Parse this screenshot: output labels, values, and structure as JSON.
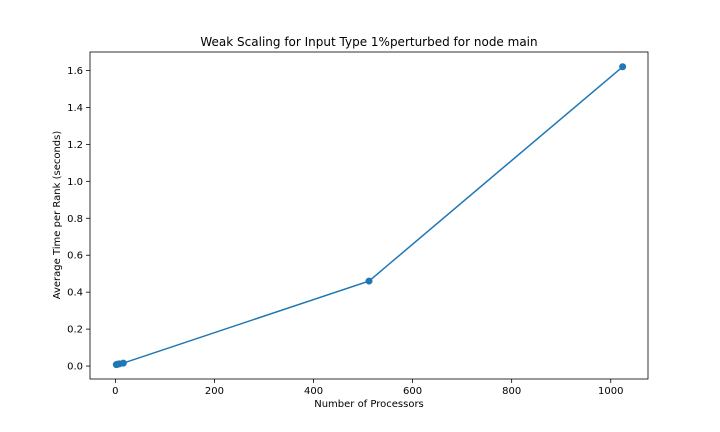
{
  "chart_data": {
    "type": "line",
    "title": "Weak Scaling for Input Type 1%perturbed for node main",
    "xlabel": "Number of Processors",
    "ylabel": "Average Time per Rank (seconds)",
    "xlim": [
      -51.2,
      1075.2
    ],
    "ylim": [
      -0.07,
      1.7
    ],
    "xticks": [
      0,
      200,
      400,
      600,
      800,
      1000
    ],
    "xtick_labels": [
      "0",
      "200",
      "400",
      "600",
      "800",
      "1000"
    ],
    "yticks": [
      0.0,
      0.2,
      0.4,
      0.6,
      0.8,
      1.0,
      1.2,
      1.4,
      1.6
    ],
    "ytick_labels": [
      "0.0",
      "0.2",
      "0.4",
      "0.6",
      "0.8",
      "1.0",
      "1.2",
      "1.4",
      "1.6"
    ],
    "grid": false,
    "colors": {
      "series": "#1f77b4",
      "axes": "#000000"
    },
    "series": [
      {
        "marker": "circle",
        "x": [
          2,
          4,
          8,
          16,
          512,
          1024
        ],
        "y": [
          0.008,
          0.01,
          0.012,
          0.016,
          0.46,
          1.62
        ]
      }
    ]
  }
}
